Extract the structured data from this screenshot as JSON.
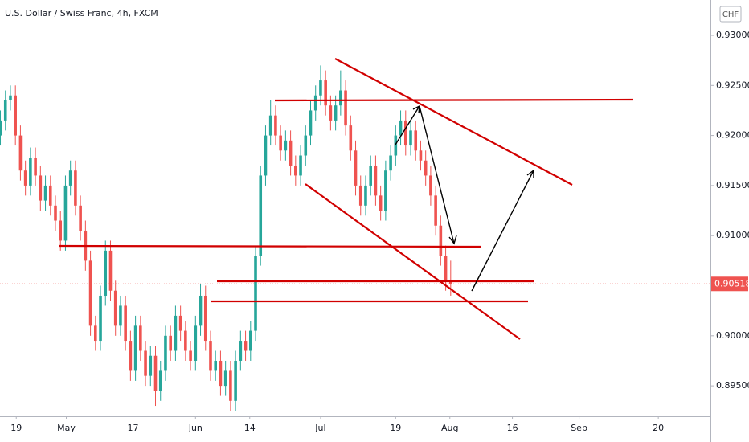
{
  "chart_data": {
    "type": "candlestick",
    "title": "U.S. Dollar / Swiss Franc, 4h, FXCM",
    "currency": "CHF",
    "colors": {
      "up": "#26a69a",
      "down": "#ef5350"
    },
    "xlim": [
      -3.9,
      166.5
    ],
    "ylim": [
      0.89196,
      0.93353
    ],
    "grid": false,
    "xticks": [
      {
        "value": 0,
        "label": "19"
      },
      {
        "value": 12,
        "label": "May"
      },
      {
        "value": 28,
        "label": "17"
      },
      {
        "value": 43,
        "label": "Jun"
      },
      {
        "value": 56,
        "label": "14"
      },
      {
        "value": 73,
        "label": "Jul"
      },
      {
        "value": 91,
        "label": "19"
      },
      {
        "value": 104,
        "label": "Aug"
      },
      {
        "value": 119,
        "label": "16"
      },
      {
        "value": 135,
        "label": "Sep"
      },
      {
        "value": 154,
        "label": "20"
      }
    ],
    "yticks": [
      {
        "value": 0.93,
        "label": "0.93000"
      },
      {
        "value": 0.925,
        "label": "0.92500"
      },
      {
        "value": 0.92,
        "label": "0.92000"
      },
      {
        "value": 0.915,
        "label": "0.91500"
      },
      {
        "value": 0.91,
        "label": "0.91000"
      },
      {
        "value": 0.9,
        "label": "0.90000"
      },
      {
        "value": 0.895,
        "label": "0.89500"
      }
    ],
    "last_price": {
      "value": 0.90518,
      "label": "0.90518",
      "color": "#ef5350"
    },
    "x": [
      -3.8,
      -2.6,
      -1.4,
      -0.2,
      1,
      2.2,
      3.4,
      4.6,
      5.8,
      7,
      8.2,
      9.4,
      10.6,
      11.8,
      13,
      14.2,
      15.4,
      16.6,
      17.8,
      19,
      20.2,
      21.4,
      22.6,
      23.8,
      25,
      26.2,
      27.4,
      28.6,
      29.8,
      31,
      32.2,
      33.4,
      34.6,
      35.8,
      37,
      38.2,
      39.4,
      40.6,
      41.8,
      43,
      44.2,
      45.4,
      46.6,
      47.8,
      49,
      50.2,
      51.4,
      52.6,
      53.8,
      55,
      56.2,
      57.4,
      58.6,
      59.8,
      61,
      62.2,
      63.4,
      64.6,
      65.8,
      67,
      68.2,
      69.4,
      70.6,
      71.8,
      73,
      74.2,
      75.4,
      76.6,
      77.8,
      79,
      80.2,
      81.4,
      82.6,
      83.8,
      85,
      86.2,
      87.4,
      88.6,
      89.8,
      91,
      92.2,
      93.4,
      94.6,
      95.8,
      97,
      98.2,
      99.4,
      100.6,
      101.8,
      103,
      104.2
    ],
    "open": [
      0.92,
      0.9215,
      0.9235,
      0.924,
      0.92,
      0.9165,
      0.915,
      0.9178,
      0.916,
      0.9135,
      0.915,
      0.913,
      0.9115,
      0.9095,
      0.915,
      0.9165,
      0.913,
      0.9105,
      0.9075,
      0.901,
      0.8995,
      0.904,
      0.9085,
      0.9045,
      0.901,
      0.903,
      0.8995,
      0.8965,
      0.901,
      0.8985,
      0.896,
      0.898,
      0.8945,
      0.8965,
      0.9,
      0.8985,
      0.902,
      0.9005,
      0.8985,
      0.8975,
      0.901,
      0.904,
      0.8995,
      0.8965,
      0.8975,
      0.895,
      0.8965,
      0.8935,
      0.8975,
      0.8995,
      0.8985,
      0.9005,
      0.908,
      0.916,
      0.92,
      0.922,
      0.92,
      0.9185,
      0.9195,
      0.917,
      0.916,
      0.918,
      0.92,
      0.9225,
      0.924,
      0.9255,
      0.923,
      0.9215,
      0.923,
      0.9245,
      0.921,
      0.9185,
      0.915,
      0.913,
      0.915,
      0.917,
      0.914,
      0.9125,
      0.9165,
      0.918,
      0.92,
      0.9215,
      0.919,
      0.9205,
      0.9185,
      0.9175,
      0.916,
      0.914,
      0.911,
      0.908,
      0.9055
    ],
    "high": [
      0.9225,
      0.9245,
      0.925,
      0.925,
      0.921,
      0.9175,
      0.9188,
      0.9188,
      0.917,
      0.916,
      0.916,
      0.914,
      0.9125,
      0.916,
      0.9175,
      0.9175,
      0.914,
      0.9115,
      0.9085,
      0.902,
      0.905,
      0.9095,
      0.9095,
      0.9055,
      0.904,
      0.904,
      0.9005,
      0.902,
      0.902,
      0.8995,
      0.899,
      0.899,
      0.8975,
      0.901,
      0.901,
      0.903,
      0.903,
      0.9015,
      0.8995,
      0.902,
      0.9052,
      0.905,
      0.9005,
      0.8985,
      0.8985,
      0.8975,
      0.8975,
      0.8985,
      0.9005,
      0.9005,
      0.9015,
      0.909,
      0.917,
      0.921,
      0.9235,
      0.923,
      0.921,
      0.9205,
      0.9205,
      0.918,
      0.919,
      0.921,
      0.9235,
      0.925,
      0.927,
      0.9265,
      0.924,
      0.924,
      0.9265,
      0.9255,
      0.922,
      0.9195,
      0.916,
      0.916,
      0.918,
      0.918,
      0.915,
      0.9175,
      0.919,
      0.921,
      0.9225,
      0.9225,
      0.9215,
      0.9215,
      0.9195,
      0.9185,
      0.917,
      0.915,
      0.912,
      0.909,
      0.9075
    ],
    "low": [
      0.919,
      0.9205,
      0.9225,
      0.919,
      0.9155,
      0.914,
      0.914,
      0.915,
      0.9125,
      0.9125,
      0.912,
      0.9105,
      0.9085,
      0.9085,
      0.914,
      0.912,
      0.9095,
      0.9065,
      0.9,
      0.8985,
      0.8985,
      0.903,
      0.9035,
      0.9,
      0.9,
      0.8985,
      0.8955,
      0.8955,
      0.8975,
      0.895,
      0.895,
      0.893,
      0.8935,
      0.8955,
      0.8975,
      0.8975,
      0.8995,
      0.8975,
      0.8965,
      0.8965,
      0.9,
      0.8985,
      0.8955,
      0.8955,
      0.894,
      0.894,
      0.8925,
      0.8925,
      0.8965,
      0.8975,
      0.8975,
      0.8995,
      0.907,
      0.915,
      0.919,
      0.919,
      0.9175,
      0.9175,
      0.916,
      0.915,
      0.915,
      0.917,
      0.919,
      0.9215,
      0.923,
      0.922,
      0.9205,
      0.9205,
      0.922,
      0.92,
      0.9175,
      0.914,
      0.912,
      0.912,
      0.914,
      0.913,
      0.9115,
      0.9115,
      0.9155,
      0.917,
      0.919,
      0.918,
      0.918,
      0.9175,
      0.9165,
      0.915,
      0.913,
      0.91,
      0.907,
      0.9045,
      0.904
    ],
    "close": [
      0.9215,
      0.9235,
      0.924,
      0.92,
      0.9165,
      0.915,
      0.9178,
      0.916,
      0.9135,
      0.915,
      0.913,
      0.9115,
      0.9095,
      0.915,
      0.9165,
      0.913,
      0.9105,
      0.9075,
      0.901,
      0.8995,
      0.904,
      0.9085,
      0.9045,
      0.901,
      0.903,
      0.8995,
      0.8965,
      0.901,
      0.8985,
      0.896,
      0.898,
      0.8945,
      0.8965,
      0.9,
      0.8985,
      0.902,
      0.9005,
      0.8985,
      0.8975,
      0.901,
      0.904,
      0.8995,
      0.8965,
      0.8975,
      0.895,
      0.8965,
      0.8935,
      0.8975,
      0.8995,
      0.8985,
      0.9005,
      0.908,
      0.916,
      0.92,
      0.922,
      0.92,
      0.9185,
      0.9195,
      0.917,
      0.916,
      0.918,
      0.92,
      0.9225,
      0.924,
      0.9255,
      0.923,
      0.9215,
      0.923,
      0.9245,
      0.921,
      0.9185,
      0.915,
      0.913,
      0.915,
      0.917,
      0.914,
      0.9125,
      0.9165,
      0.918,
      0.92,
      0.9215,
      0.919,
      0.9205,
      0.9185,
      0.9175,
      0.916,
      0.914,
      0.911,
      0.908,
      0.9055,
      0.9052
    ]
  }
}
